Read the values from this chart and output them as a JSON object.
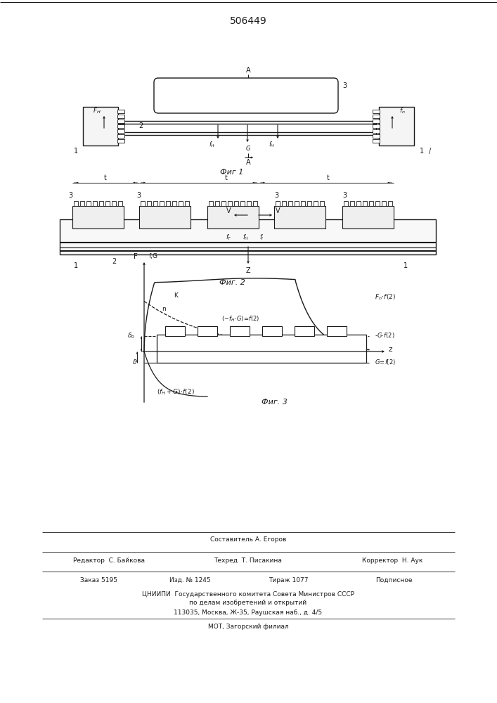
{
  "title": "506449",
  "bg_color": "#ffffff",
  "line_color": "#1a1a1a",
  "fig1_label": "Фиг 1",
  "fig2_label": "Фиг. 2",
  "fig3_label": "Фиг. 3",
  "footer": {
    "sostavitel": "Составитель А. Егоров",
    "redaktor": "Редактор  С. Байкова",
    "tehred": "Техред  Т. Писакина",
    "korrektor": "Корректор  Н. Аук",
    "zakaz": "Заказ 5195",
    "izd": "Изд. № 1245",
    "tirazh": "Тираж 1077",
    "podpisnoe": "Подписное",
    "cnipi1": "ЦНИИПИ  Государственного комитета Совета Министров СССР",
    "cnipi2": "по делам изобретений и открытий",
    "cnipi3": "113035, Москва, Ж-35, Раушская наб., д. 4/5",
    "mot": "МОТ, Загорский филиал"
  }
}
